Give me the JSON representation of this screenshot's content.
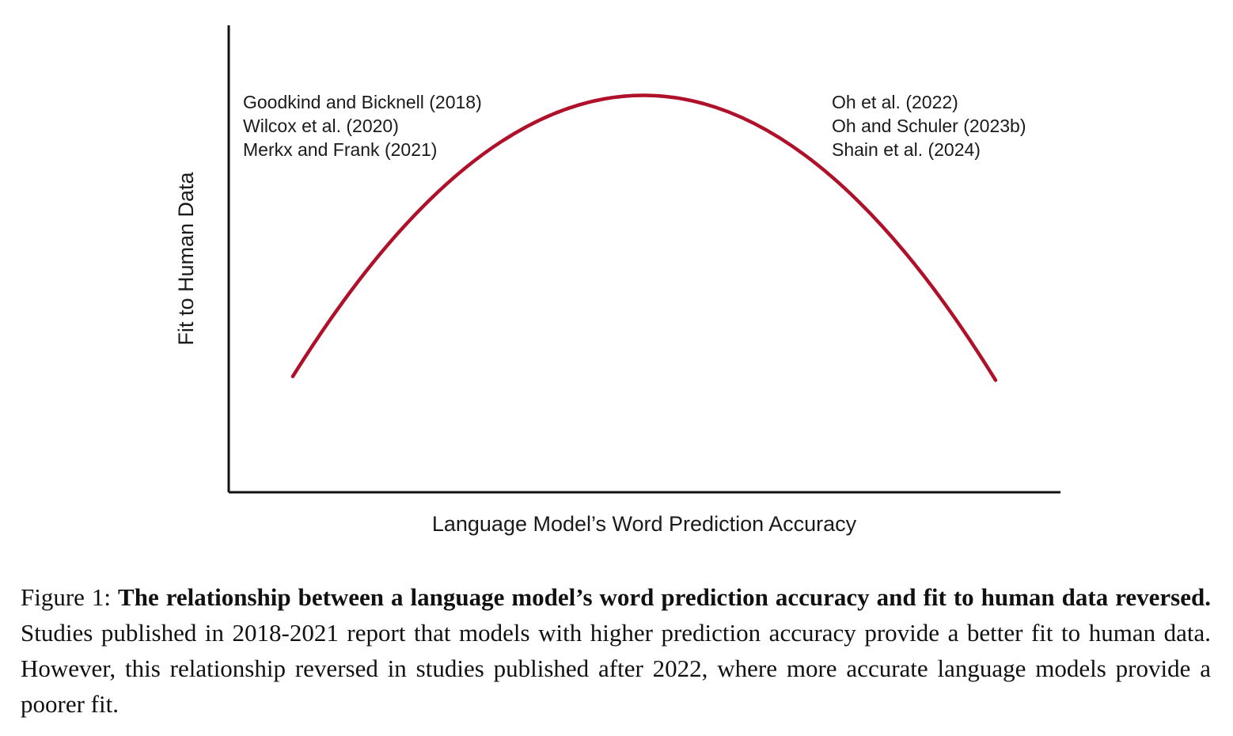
{
  "chart_data": {
    "type": "line",
    "title": "",
    "xlabel": "Language Model’s Word Prediction Accuracy",
    "ylabel": "Fit to Human Data",
    "xlim": [
      0,
      1
    ],
    "ylim": [
      0,
      1
    ],
    "ticks": "none",
    "grid": false,
    "series": [
      {
        "name": "fit-curve",
        "color": "#B0112A",
        "x": [
          0.077,
          0.5,
          0.922
        ],
        "y": [
          0.248,
          0.85,
          0.24
        ]
      }
    ],
    "annotations": {
      "left": [
        "Goodkind and Bicknell (2018)",
        "Wilcox et al. (2020)",
        "Merkx and Frank (2021)"
      ],
      "right": [
        "Oh et al. (2022)",
        "Oh and Schuler (2023b)",
        "Shain et al. (2024)"
      ]
    }
  },
  "caption": {
    "label": "Figure 1:",
    "bold": "The relationship between a language model’s word prediction accuracy and fit to human data reversed.",
    "text": "Studies published in 2018-2021 report that models with higher prediction accuracy provide a better fit to human data. However, this relationship reversed in studies published after 2022, where more accurate language models provide a poorer fit."
  }
}
